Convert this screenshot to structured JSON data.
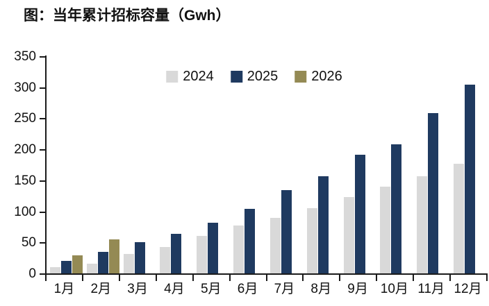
{
  "title": "图：当年累计招标容量（Gwh）",
  "legend": {
    "items": [
      {
        "label": "2024",
        "color": "#d9d9d9"
      },
      {
        "label": "2025",
        "color": "#1f3a60"
      },
      {
        "label": "2026",
        "color": "#948a54"
      }
    ]
  },
  "axes": {
    "y_tick_labels": [
      "0",
      "50",
      "100",
      "150",
      "200",
      "250",
      "300",
      "350"
    ],
    "x_tick_labels": [
      "1月",
      "2月",
      "3月",
      "4月",
      "5月",
      "6月",
      "7月",
      "8月",
      "9月",
      "10月",
      "11月",
      "12月"
    ]
  },
  "chart_data": {
    "type": "bar",
    "title": "图：当年累计招标容量（Gwh）",
    "categories": [
      "1月",
      "2月",
      "3月",
      "4月",
      "5月",
      "6月",
      "7月",
      "8月",
      "9月",
      "10月",
      "11月",
      "12月"
    ],
    "series": [
      {
        "name": "2024",
        "color": "#d9d9d9",
        "values": [
          10,
          16,
          31,
          43,
          60,
          77,
          89,
          105,
          123,
          140,
          157,
          177
        ]
      },
      {
        "name": "2025",
        "color": "#1f3a60",
        "values": [
          20,
          35,
          50,
          64,
          82,
          104,
          134,
          157,
          191,
          208,
          258,
          304
        ]
      },
      {
        "name": "2026",
        "color": "#948a54",
        "values": [
          29,
          55,
          null,
          null,
          null,
          null,
          null,
          null,
          null,
          null,
          null,
          null
        ]
      }
    ],
    "xlabel": "",
    "ylabel": "",
    "ylim": [
      0,
      350
    ],
    "yticks": [
      0,
      50,
      100,
      150,
      200,
      250,
      300,
      350
    ],
    "grid": false,
    "legend_position": "top-center"
  }
}
